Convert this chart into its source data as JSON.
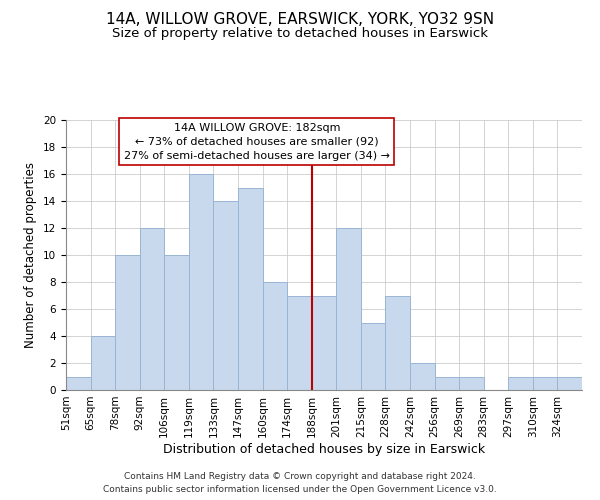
{
  "title": "14A, WILLOW GROVE, EARSWICK, YORK, YO32 9SN",
  "subtitle": "Size of property relative to detached houses in Earswick",
  "xlabel": "Distribution of detached houses by size in Earswick",
  "ylabel": "Number of detached properties",
  "bin_labels": [
    "51sqm",
    "65sqm",
    "78sqm",
    "92sqm",
    "106sqm",
    "119sqm",
    "133sqm",
    "147sqm",
    "160sqm",
    "174sqm",
    "188sqm",
    "201sqm",
    "215sqm",
    "228sqm",
    "242sqm",
    "256sqm",
    "269sqm",
    "283sqm",
    "297sqm",
    "310sqm",
    "324sqm"
  ],
  "bar_heights": [
    1,
    4,
    10,
    12,
    10,
    16,
    14,
    15,
    8,
    7,
    7,
    12,
    5,
    7,
    2,
    1,
    1,
    0,
    1,
    1,
    1
  ],
  "bar_color": "#c8d9ee",
  "bar_edge_color": "#9ab5d4",
  "vline_x_index": 10,
  "vline_color": "#bb0000",
  "annotation_title": "14A WILLOW GROVE: 182sqm",
  "annotation_line1": "← 73% of detached houses are smaller (92)",
  "annotation_line2": "27% of semi-detached houses are larger (34) →",
  "annotation_box_facecolor": "#ffffff",
  "annotation_box_edgecolor": "#bb0000",
  "ylim": [
    0,
    20
  ],
  "yticks": [
    0,
    2,
    4,
    6,
    8,
    10,
    12,
    14,
    16,
    18,
    20
  ],
  "footer_line1": "Contains HM Land Registry data © Crown copyright and database right 2024.",
  "footer_line2": "Contains public sector information licensed under the Open Government Licence v3.0.",
  "title_fontsize": 11,
  "subtitle_fontsize": 9.5,
  "xlabel_fontsize": 9,
  "ylabel_fontsize": 8.5,
  "tick_fontsize": 7.5,
  "annotation_fontsize": 8,
  "footer_fontsize": 6.5
}
